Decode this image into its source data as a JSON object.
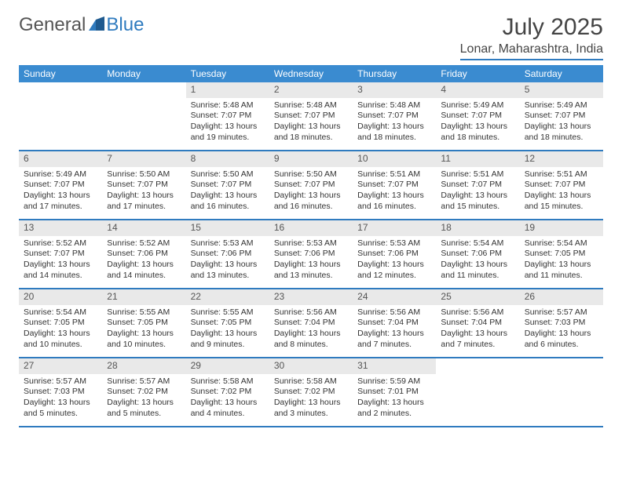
{
  "brand": {
    "word1": "General",
    "word2": "Blue"
  },
  "title": "July 2025",
  "location": "Lonar, Maharashtra, India",
  "colors": {
    "header_bg": "#3a8bd0",
    "accent": "#2f7bbf",
    "daynum_bg": "#e9e9e9",
    "text": "#333333"
  },
  "day_names": [
    "Sunday",
    "Monday",
    "Tuesday",
    "Wednesday",
    "Thursday",
    "Friday",
    "Saturday"
  ],
  "weeks": [
    [
      null,
      null,
      {
        "n": "1",
        "sr": "5:48 AM",
        "ss": "7:07 PM",
        "dl": "13 hours and 19 minutes."
      },
      {
        "n": "2",
        "sr": "5:48 AM",
        "ss": "7:07 PM",
        "dl": "13 hours and 18 minutes."
      },
      {
        "n": "3",
        "sr": "5:48 AM",
        "ss": "7:07 PM",
        "dl": "13 hours and 18 minutes."
      },
      {
        "n": "4",
        "sr": "5:49 AM",
        "ss": "7:07 PM",
        "dl": "13 hours and 18 minutes."
      },
      {
        "n": "5",
        "sr": "5:49 AM",
        "ss": "7:07 PM",
        "dl": "13 hours and 18 minutes."
      }
    ],
    [
      {
        "n": "6",
        "sr": "5:49 AM",
        "ss": "7:07 PM",
        "dl": "13 hours and 17 minutes."
      },
      {
        "n": "7",
        "sr": "5:50 AM",
        "ss": "7:07 PM",
        "dl": "13 hours and 17 minutes."
      },
      {
        "n": "8",
        "sr": "5:50 AM",
        "ss": "7:07 PM",
        "dl": "13 hours and 16 minutes."
      },
      {
        "n": "9",
        "sr": "5:50 AM",
        "ss": "7:07 PM",
        "dl": "13 hours and 16 minutes."
      },
      {
        "n": "10",
        "sr": "5:51 AM",
        "ss": "7:07 PM",
        "dl": "13 hours and 16 minutes."
      },
      {
        "n": "11",
        "sr": "5:51 AM",
        "ss": "7:07 PM",
        "dl": "13 hours and 15 minutes."
      },
      {
        "n": "12",
        "sr": "5:51 AM",
        "ss": "7:07 PM",
        "dl": "13 hours and 15 minutes."
      }
    ],
    [
      {
        "n": "13",
        "sr": "5:52 AM",
        "ss": "7:07 PM",
        "dl": "13 hours and 14 minutes."
      },
      {
        "n": "14",
        "sr": "5:52 AM",
        "ss": "7:06 PM",
        "dl": "13 hours and 14 minutes."
      },
      {
        "n": "15",
        "sr": "5:53 AM",
        "ss": "7:06 PM",
        "dl": "13 hours and 13 minutes."
      },
      {
        "n": "16",
        "sr": "5:53 AM",
        "ss": "7:06 PM",
        "dl": "13 hours and 13 minutes."
      },
      {
        "n": "17",
        "sr": "5:53 AM",
        "ss": "7:06 PM",
        "dl": "13 hours and 12 minutes."
      },
      {
        "n": "18",
        "sr": "5:54 AM",
        "ss": "7:06 PM",
        "dl": "13 hours and 11 minutes."
      },
      {
        "n": "19",
        "sr": "5:54 AM",
        "ss": "7:05 PM",
        "dl": "13 hours and 11 minutes."
      }
    ],
    [
      {
        "n": "20",
        "sr": "5:54 AM",
        "ss": "7:05 PM",
        "dl": "13 hours and 10 minutes."
      },
      {
        "n": "21",
        "sr": "5:55 AM",
        "ss": "7:05 PM",
        "dl": "13 hours and 10 minutes."
      },
      {
        "n": "22",
        "sr": "5:55 AM",
        "ss": "7:05 PM",
        "dl": "13 hours and 9 minutes."
      },
      {
        "n": "23",
        "sr": "5:56 AM",
        "ss": "7:04 PM",
        "dl": "13 hours and 8 minutes."
      },
      {
        "n": "24",
        "sr": "5:56 AM",
        "ss": "7:04 PM",
        "dl": "13 hours and 7 minutes."
      },
      {
        "n": "25",
        "sr": "5:56 AM",
        "ss": "7:04 PM",
        "dl": "13 hours and 7 minutes."
      },
      {
        "n": "26",
        "sr": "5:57 AM",
        "ss": "7:03 PM",
        "dl": "13 hours and 6 minutes."
      }
    ],
    [
      {
        "n": "27",
        "sr": "5:57 AM",
        "ss": "7:03 PM",
        "dl": "13 hours and 5 minutes."
      },
      {
        "n": "28",
        "sr": "5:57 AM",
        "ss": "7:02 PM",
        "dl": "13 hours and 5 minutes."
      },
      {
        "n": "29",
        "sr": "5:58 AM",
        "ss": "7:02 PM",
        "dl": "13 hours and 4 minutes."
      },
      {
        "n": "30",
        "sr": "5:58 AM",
        "ss": "7:02 PM",
        "dl": "13 hours and 3 minutes."
      },
      {
        "n": "31",
        "sr": "5:59 AM",
        "ss": "7:01 PM",
        "dl": "13 hours and 2 minutes."
      },
      null,
      null
    ]
  ],
  "labels": {
    "sunrise": "Sunrise:",
    "sunset": "Sunset:",
    "daylight": "Daylight:"
  }
}
